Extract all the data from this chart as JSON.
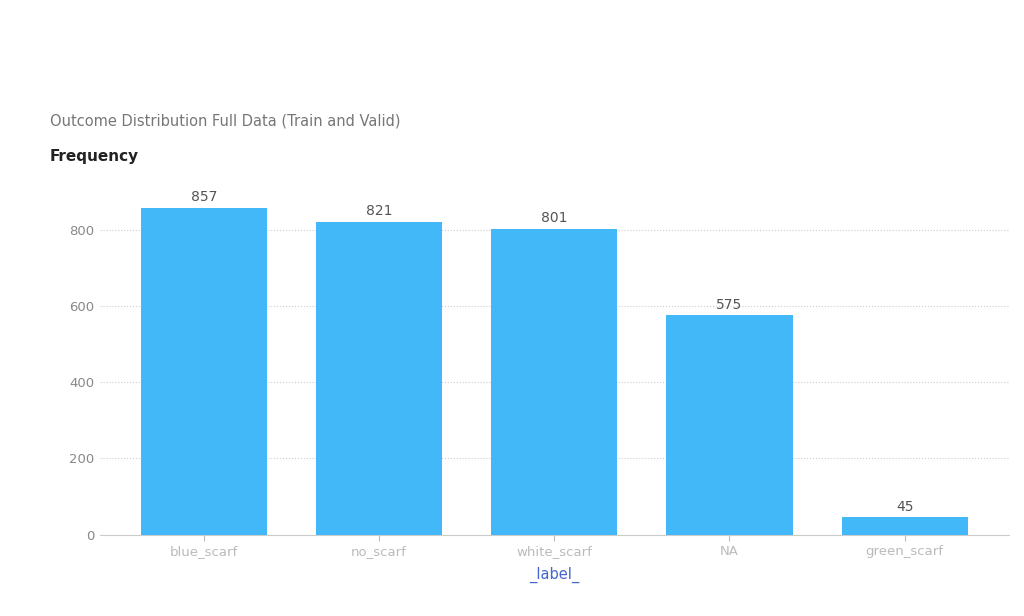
{
  "categories": [
    "blue_scarf",
    "no_scarf",
    "white_scarf",
    "NA",
    "green_scarf"
  ],
  "values": [
    857,
    821,
    801,
    575,
    45
  ],
  "bar_color": "#42b8f8",
  "title": "Outcome Distribution Full Data (Train and Valid)",
  "ylabel": "Frequency",
  "xlabel": "_label_",
  "ylim": [
    0,
    920
  ],
  "yticks": [
    0,
    200,
    400,
    600,
    800
  ],
  "background_color": "#ffffff",
  "grid_color": "#cccccc",
  "title_fontsize": 10.5,
  "ylabel_fontsize": 11,
  "xlabel_fontsize": 10.5,
  "tick_fontsize": 9.5,
  "bar_label_fontsize": 10,
  "tick_color_x": "#4466cc",
  "tick_color_y": "#888888",
  "xlabel_color": "#4466cc",
  "title_color": "#777777",
  "bar_label_color": "#555555"
}
